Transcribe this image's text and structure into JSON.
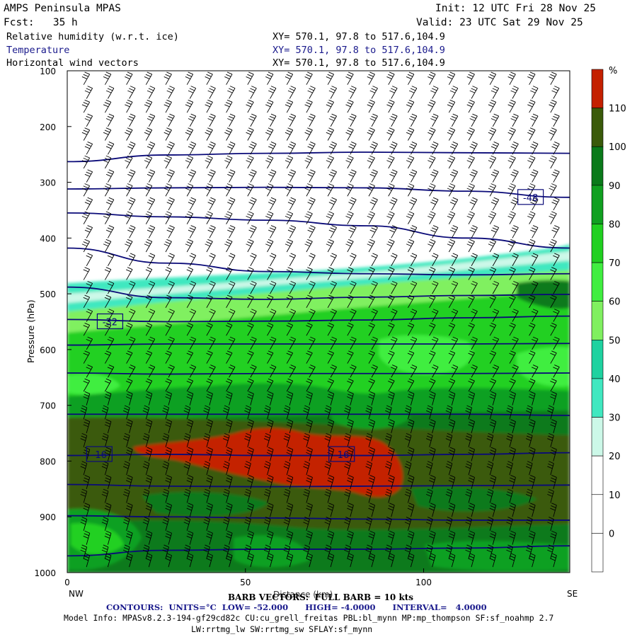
{
  "header": {
    "title": "AMPS Peninsula MPAS",
    "fcst": "Fcst:   35 h",
    "init": "Init: 12 UTC Fri 28 Nov 25",
    "valid": "Valid: 23 UTC Sat 29 Nov 25",
    "fields": [
      {
        "name": "Relative humidity (w.r.t. ice)",
        "xy": "XY= 570.1, 97.8 to 517.6,104.9"
      },
      {
        "name": "Temperature",
        "xy": "XY= 570.1, 97.8 to 517.6,104.9"
      },
      {
        "name": "Horizontal wind vectors",
        "xy": "XY= 570.1, 97.8 to 517.6,104.9"
      }
    ]
  },
  "chart_data": {
    "type": "heatmap",
    "title": "Relative humidity (w.r.t. ice), Temperature, Horizontal wind vectors cross-section",
    "xlabel": "Distance (km)",
    "ylabel": "Pressure (hPa)",
    "xlim": [
      0,
      141
    ],
    "ylim": [
      1000,
      100
    ],
    "x_ticks": [
      0,
      50,
      100
    ],
    "y_ticks": [
      100,
      200,
      300,
      400,
      500,
      600,
      700,
      800,
      900,
      1000
    ],
    "x_end_labels": {
      "left": "NW",
      "right": "SE"
    },
    "colorbar": {
      "units": "%",
      "levels": [
        0,
        10,
        20,
        30,
        40,
        50,
        60,
        70,
        80,
        90,
        100,
        110
      ],
      "colors": [
        "#ffffff",
        "#ffffff",
        "#ffffff",
        "#ccf8e8",
        "#40e8c0",
        "#1ed2a0",
        "#80f060",
        "#40ee40",
        "#20d020",
        "#10a020",
        "#0a7a1a",
        "#3a5a0a",
        "#c42000"
      ]
    },
    "rh_regions": [
      {
        "label": ">= 110",
        "color": "#c42000"
      },
      {
        "label": "100-110",
        "color": "#3a5a0a"
      },
      {
        "label": "90-100",
        "color": "#0a7a1a"
      },
      {
        "label": "80-90",
        "color": "#10a020"
      },
      {
        "label": "70-80",
        "color": "#20d020"
      }
    ],
    "temperature_contours": {
      "color": "#0a0a78",
      "units": "°C",
      "low": -52.0,
      "high": -4.0,
      "interval": 4.0,
      "lines": [
        {
          "p": [
            263,
            251,
            248,
            246,
            247,
            248
          ]
        },
        {
          "p": [
            312,
            310,
            309,
            310,
            316,
            327
          ]
        },
        {
          "p": [
            355,
            362,
            368,
            378,
            400,
            418
          ]
        },
        {
          "p": [
            418,
            445,
            460,
            464,
            466,
            464
          ]
        },
        {
          "p": [
            488,
            507,
            510,
            506,
            503,
            501
          ]
        },
        {
          "p": [
            546,
            550,
            549,
            547,
            543,
            540
          ]
        },
        {
          "p": [
            592,
            590,
            590,
            590,
            590,
            589
          ]
        },
        {
          "p": [
            642,
            644,
            643,
            643,
            643,
            642
          ]
        },
        {
          "p": [
            716,
            716,
            716,
            716,
            716,
            718
          ]
        },
        {
          "p": [
            790,
            788,
            790,
            790,
            788,
            785
          ]
        },
        {
          "p": [
            842,
            845,
            846,
            845,
            844,
            843
          ]
        },
        {
          "p": [
            898,
            900,
            902,
            904,
            906,
            906
          ]
        },
        {
          "p": [
            970,
            960,
            958,
            958,
            956,
            952
          ]
        }
      ],
      "x": [
        0,
        28,
        56,
        84,
        112,
        141
      ],
      "labels": [
        {
          "text": "-48",
          "x": 130,
          "p": 327
        },
        {
          "text": "-32",
          "x": 12,
          "p": 550
        },
        {
          "text": "-16",
          "x": 9,
          "p": 788
        },
        {
          "text": "-16",
          "x": 77,
          "p": 788
        }
      ]
    },
    "barb_columns_km": [
      5,
      11,
      17,
      22.5,
      28,
      34,
      39.5,
      45,
      51,
      56.5,
      62,
      67.5,
      73.5,
      79,
      85,
      90.5,
      96,
      102,
      107.5,
      113,
      119,
      124.5,
      130,
      136
    ],
    "barb_levels_hpa": [
      125,
      150,
      175,
      200,
      225,
      250,
      275,
      300,
      325,
      350,
      375,
      400,
      425,
      450,
      475,
      500,
      525,
      550,
      575,
      600,
      625,
      650,
      675,
      700,
      725,
      750,
      775,
      800,
      825,
      850,
      875,
      900,
      925,
      950,
      975,
      990
    ]
  },
  "footer": {
    "barb_note": "BARB VECTORS:  FULL BARB = 10 kts",
    "contours_label": "CONTOURS:  UNITS=°C  LOW= -52.000      HIGH= -4.0000      INTERVAL=   4.0000",
    "model_info_1": "Model Info: MPASv8.2.3-194-gf29cd82c CU:cu_grell_freitas PBL:bl_mynn MP:mp_thompson SF:sf_noahmp 2.7",
    "model_info_2": "LW:rrtmg_lw SW:rrtmg_sw SFLAY:sf_mynn"
  }
}
